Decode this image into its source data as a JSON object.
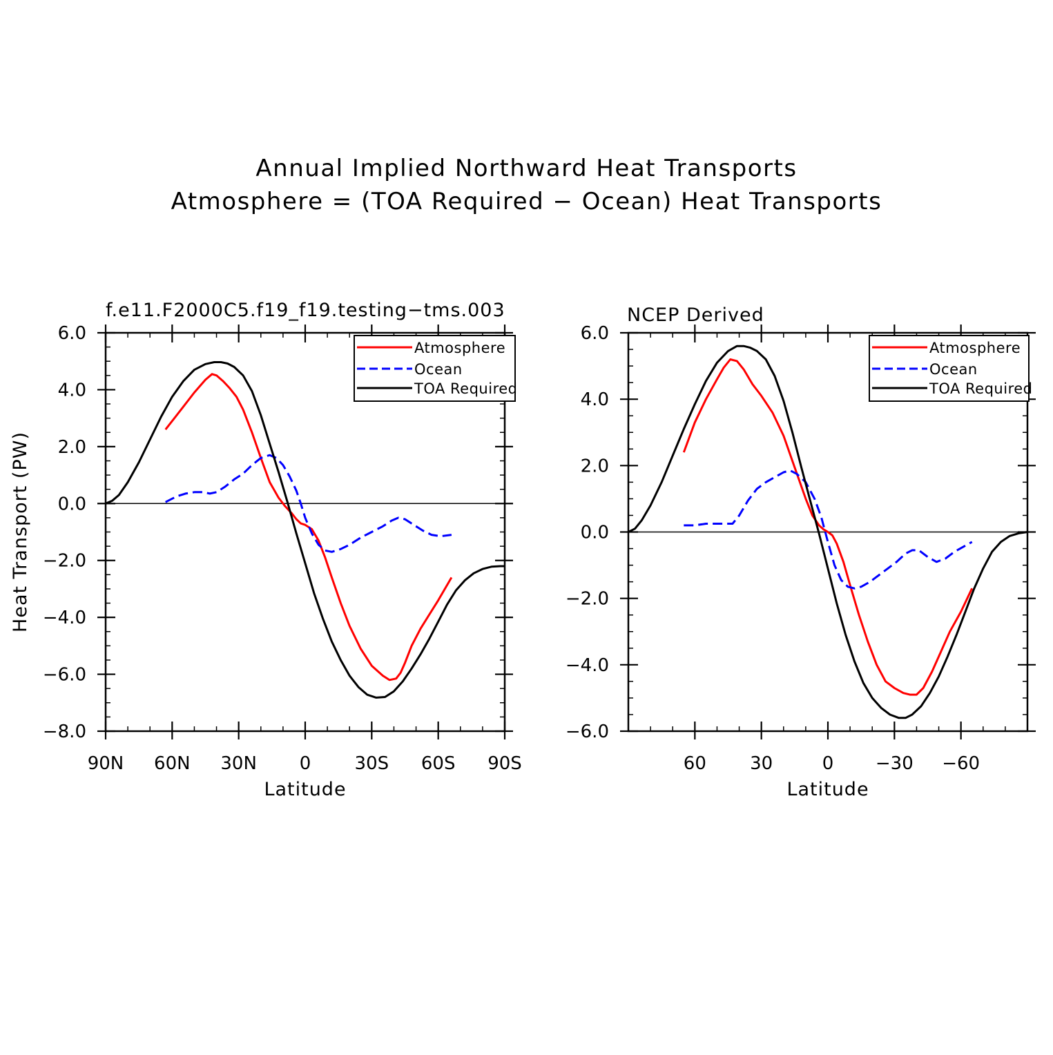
{
  "figure": {
    "title_line1": "Annual Implied Northward Heat Transports",
    "title_line2": "Atmosphere = (TOA Required − Ocean) Heat Transports"
  },
  "chart_data": [
    {
      "type": "line",
      "title": "f.e11.F2000C5.f19_f19.testing−tms.003",
      "xlabel": "Latitude",
      "ylabel": "Heat Transport (PW)",
      "xlim": [
        90,
        -90
      ],
      "ylim": [
        -8,
        6
      ],
      "x_ticks": [
        90,
        60,
        30,
        0,
        -30,
        -60,
        -90
      ],
      "x_tick_labels": [
        "90N",
        "60N",
        "30N",
        "0",
        "30S",
        "60S",
        "90S"
      ],
      "y_ticks": [
        6,
        4,
        2,
        0,
        -2,
        -4,
        -6,
        -8
      ],
      "y_tick_labels": [
        "6.0",
        "4.0",
        "2.0",
        "0.0",
        "−2.0",
        "−4.0",
        "−6.0",
        "−8.0"
      ],
      "grid": false,
      "zero_line": true,
      "legend": "top-right",
      "series": [
        {
          "name": "Atmosphere",
          "color": "#ff0000",
          "dash": "solid",
          "x": [
            63,
            55,
            50,
            45,
            42,
            40,
            37,
            34,
            31,
            28,
            24,
            20,
            16,
            12,
            9,
            6,
            4,
            2,
            0,
            -3,
            -6,
            -9,
            -12,
            -16,
            -20,
            -25,
            -30,
            -35,
            -38,
            -41,
            -43,
            -45,
            -48,
            -52,
            -56,
            -60,
            -63,
            -66
          ],
          "y": [
            2.6,
            3.4,
            3.9,
            4.35,
            4.55,
            4.5,
            4.3,
            4.05,
            3.75,
            3.3,
            2.5,
            1.6,
            0.75,
            0.2,
            -0.1,
            -0.35,
            -0.55,
            -0.7,
            -0.75,
            -0.9,
            -1.3,
            -1.9,
            -2.6,
            -3.5,
            -4.3,
            -5.1,
            -5.7,
            -6.05,
            -6.2,
            -6.15,
            -5.95,
            -5.6,
            -5.0,
            -4.4,
            -3.9,
            -3.4,
            -3.0,
            -2.6
          ]
        },
        {
          "name": "Ocean",
          "color": "#0000ff",
          "dash": "dashed",
          "x": [
            63,
            58,
            54,
            50,
            46,
            43,
            40,
            36,
            32,
            28,
            24,
            20,
            16,
            13,
            10,
            7,
            4,
            2,
            0,
            -3,
            -6,
            -9,
            -12,
            -16,
            -20,
            -25,
            -30,
            -35,
            -39,
            -42,
            -45,
            -49,
            -53,
            -57,
            -61,
            -66
          ],
          "y": [
            0.05,
            0.25,
            0.35,
            0.4,
            0.4,
            0.35,
            0.4,
            0.6,
            0.85,
            1.05,
            1.35,
            1.6,
            1.7,
            1.6,
            1.35,
            0.95,
            0.45,
            0.0,
            -0.5,
            -1.05,
            -1.45,
            -1.65,
            -1.7,
            -1.6,
            -1.45,
            -1.2,
            -1.0,
            -0.8,
            -0.6,
            -0.5,
            -0.55,
            -0.75,
            -0.95,
            -1.1,
            -1.15,
            -1.1
          ]
        },
        {
          "name": "TOA Required",
          "color": "#000000",
          "dash": "solid",
          "x": [
            90,
            87,
            84,
            80,
            75,
            70,
            65,
            60,
            55,
            50,
            45,
            41,
            38,
            35,
            32,
            28,
            24,
            20,
            16,
            12,
            8,
            4,
            0,
            -4,
            -8,
            -12,
            -16,
            -20,
            -24,
            -28,
            -32,
            -36,
            -40,
            -44,
            -48,
            -52,
            -56,
            -60,
            -64,
            -68,
            -72,
            -76,
            -80,
            -84,
            -88,
            -90
          ],
          "y": [
            0.0,
            0.1,
            0.3,
            0.75,
            1.45,
            2.25,
            3.05,
            3.75,
            4.3,
            4.7,
            4.9,
            4.97,
            4.97,
            4.92,
            4.8,
            4.5,
            3.95,
            3.1,
            2.1,
            1.1,
            0.05,
            -1.05,
            -2.1,
            -3.15,
            -4.05,
            -4.85,
            -5.5,
            -6.05,
            -6.45,
            -6.72,
            -6.82,
            -6.8,
            -6.6,
            -6.25,
            -5.8,
            -5.3,
            -4.75,
            -4.15,
            -3.55,
            -3.05,
            -2.7,
            -2.45,
            -2.3,
            -2.22,
            -2.2,
            -2.2
          ]
        }
      ]
    },
    {
      "type": "line",
      "title": "NCEP Derived",
      "xlabel": "Latitude",
      "ylabel": "",
      "xlim": [
        90,
        -90
      ],
      "ylim": [
        -6,
        6
      ],
      "x_ticks": [
        60,
        30,
        0,
        -30,
        -60
      ],
      "x_tick_labels": [
        "60",
        "30",
        "0",
        "−30",
        "−60"
      ],
      "y_ticks": [
        6,
        4,
        2,
        0,
        -2,
        -4,
        -6
      ],
      "y_tick_labels": [
        "6.0",
        "4.0",
        "2.0",
        "0.0",
        "−2.0",
        "−4.0",
        "−6.0"
      ],
      "grid": false,
      "zero_line": true,
      "legend": "top-right",
      "series": [
        {
          "name": "Atmosphere",
          "color": "#ff0000",
          "dash": "solid",
          "x": [
            65,
            60,
            55,
            50,
            47,
            44,
            41,
            38,
            34,
            30,
            25,
            20,
            15,
            10,
            7,
            4,
            2,
            0,
            -2,
            -4,
            -7,
            -10,
            -14,
            -18,
            -22,
            -26,
            -30,
            -34,
            -37,
            -40,
            -43,
            -47,
            -51,
            -55,
            -60,
            -65
          ],
          "y": [
            2.4,
            3.3,
            4.0,
            4.6,
            4.95,
            5.2,
            5.15,
            4.9,
            4.45,
            4.1,
            3.6,
            2.9,
            1.95,
            1.0,
            0.5,
            0.2,
            0.08,
            0.0,
            -0.1,
            -0.35,
            -0.9,
            -1.6,
            -2.5,
            -3.3,
            -4.0,
            -4.5,
            -4.7,
            -4.85,
            -4.9,
            -4.9,
            -4.7,
            -4.2,
            -3.6,
            -3.0,
            -2.4,
            -1.7
          ]
        },
        {
          "name": "Ocean",
          "color": "#0000ff",
          "dash": "dashed",
          "x": [
            65,
            60,
            55,
            50,
            46,
            43,
            40,
            36,
            32,
            28,
            24,
            20,
            17,
            14,
            10,
            6,
            3,
            0,
            -3,
            -6,
            -9,
            -12,
            -15,
            -19,
            -23,
            -27,
            -31,
            -35,
            -38,
            -41,
            -45,
            -49,
            -53,
            -57,
            -61,
            -65
          ],
          "y": [
            0.2,
            0.2,
            0.25,
            0.25,
            0.25,
            0.25,
            0.5,
            0.95,
            1.3,
            1.5,
            1.65,
            1.8,
            1.85,
            1.75,
            1.5,
            1.0,
            0.45,
            -0.3,
            -1.0,
            -1.45,
            -1.65,
            -1.7,
            -1.65,
            -1.5,
            -1.3,
            -1.1,
            -0.9,
            -0.65,
            -0.55,
            -0.55,
            -0.75,
            -0.9,
            -0.8,
            -0.6,
            -0.45,
            -0.3
          ]
        },
        {
          "name": "TOA Required",
          "color": "#000000",
          "dash": "solid",
          "x": [
            90,
            87,
            84,
            80,
            75,
            70,
            65,
            60,
            55,
            50,
            45,
            41,
            38,
            35,
            32,
            28,
            24,
            20,
            16,
            12,
            8,
            4,
            0,
            -4,
            -8,
            -12,
            -16,
            -20,
            -24,
            -28,
            -32,
            -35,
            -38,
            -42,
            -46,
            -50,
            -54,
            -58,
            -62,
            -66,
            -70,
            -74,
            -78,
            -82,
            -86,
            -90
          ],
          "y": [
            0.0,
            0.1,
            0.35,
            0.8,
            1.5,
            2.3,
            3.1,
            3.85,
            4.55,
            5.1,
            5.45,
            5.6,
            5.6,
            5.55,
            5.45,
            5.2,
            4.7,
            3.95,
            3.0,
            1.95,
            0.95,
            -0.05,
            -1.1,
            -2.15,
            -3.1,
            -3.9,
            -4.55,
            -5.0,
            -5.3,
            -5.5,
            -5.6,
            -5.6,
            -5.5,
            -5.25,
            -4.85,
            -4.35,
            -3.75,
            -3.1,
            -2.4,
            -1.7,
            -1.1,
            -0.6,
            -0.3,
            -0.12,
            -0.04,
            0.0
          ]
        }
      ]
    }
  ]
}
